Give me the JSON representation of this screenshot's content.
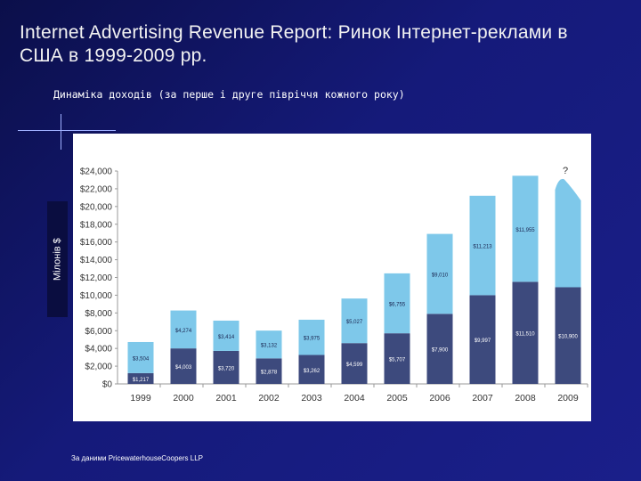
{
  "title": "Internet Advertising Revenue Report: Ринок Інтернет-реклами в США в 1999-2009 рр.",
  "subtitle": "Динаміка доходів (за перше і друге півріччя кожного року)",
  "y_axis_label": "Мілонів $",
  "source": "За даними PricewaterhouseCoopers LLP",
  "colors": {
    "first_half": "#3d4a7d",
    "second_half": "#7ec8ea",
    "background": "#151a7a"
  },
  "chart_data": {
    "type": "bar",
    "stacked": true,
    "categories": [
      "1999",
      "2000",
      "2001",
      "2002",
      "2003",
      "2004",
      "2005",
      "2006",
      "2007",
      "2008",
      "2009"
    ],
    "series": [
      {
        "values": [
          1217,
          4003,
          3720,
          2878,
          3262,
          4599,
          5707,
          7900,
          9997,
          11510,
          10900
        ],
        "labels": [
          "$1,217",
          "$4,003",
          "$3,720",
          "$2,878",
          "$3,262",
          "$4,599",
          "$5,707",
          "$7,900",
          "$9,997",
          "$11,510",
          "$10,900"
        ]
      },
      {
        "values": [
          3504,
          4274,
          3414,
          3132,
          3975,
          5027,
          6755,
          9010,
          11213,
          11955,
          null
        ],
        "labels": [
          "$3,504",
          "$4,274",
          "$3,414",
          "$3,132",
          "$3,975",
          "$5,027",
          "$6,755",
          "$9,010",
          "$11,213",
          "$11,955",
          ""
        ]
      }
    ],
    "estimate_annotation": "?",
    "yticks": [
      "$0",
      "$2,000",
      "$4,000",
      "$6,000",
      "$8,000",
      "$10,000",
      "$12,000",
      "$14,000",
      "$16,000",
      "$18,000",
      "$20,000",
      "$22,000",
      "$24,000"
    ],
    "ylim": [
      0,
      24000
    ],
    "grid": false,
    "legend": "none"
  }
}
